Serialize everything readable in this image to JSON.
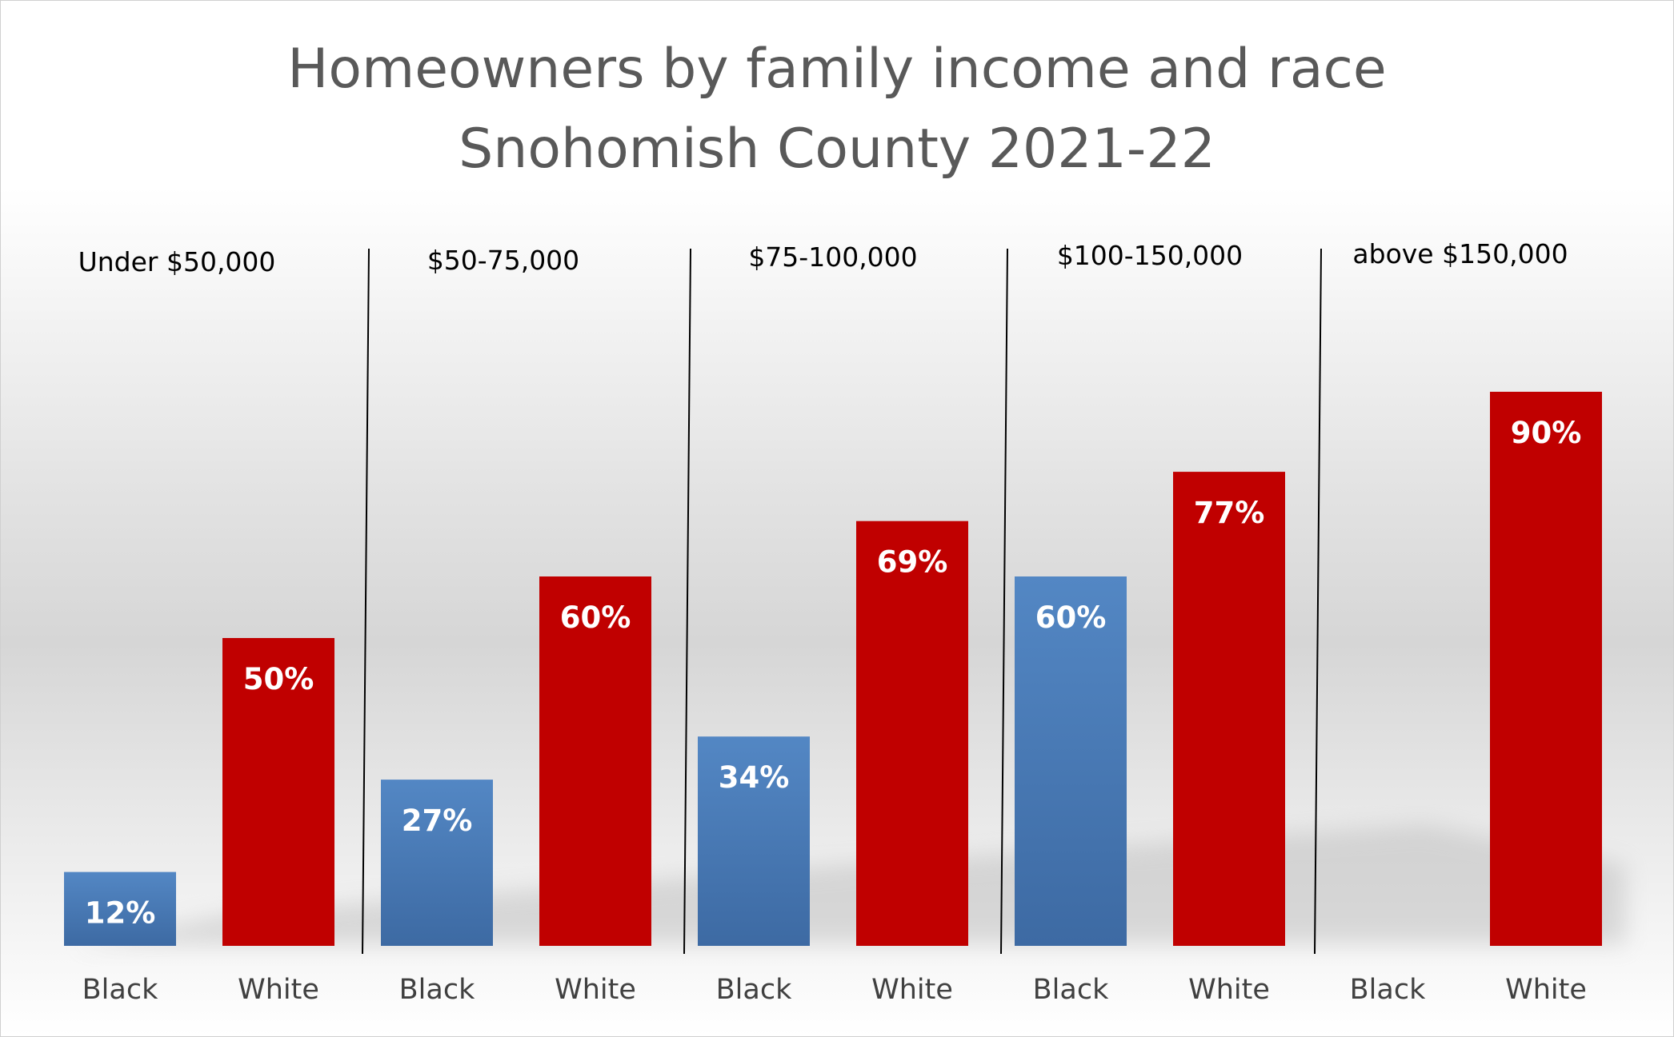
{
  "chart_data": {
    "type": "bar",
    "title": "Homeowners by family income and race",
    "subtitle": "Snohomish County 2021-22",
    "groups": [
      "Under $50,000",
      "$50-75,000",
      "$75-100,000",
      "$100-150,000",
      "above $150,000"
    ],
    "series": [
      {
        "name": "Black",
        "color": "#4f81bd",
        "values": [
          12,
          27,
          34,
          60,
          null
        ],
        "labels": [
          "12%",
          "27%",
          "34%",
          "60%",
          ""
        ]
      },
      {
        "name": "White",
        "color": "#c00000",
        "values": [
          50,
          60,
          69,
          77,
          90
        ],
        "labels": [
          "50%",
          "60%",
          "69%",
          "77%",
          "90%"
        ]
      }
    ],
    "ylim": [
      0,
      100
    ],
    "grid": false,
    "legend": "none"
  }
}
